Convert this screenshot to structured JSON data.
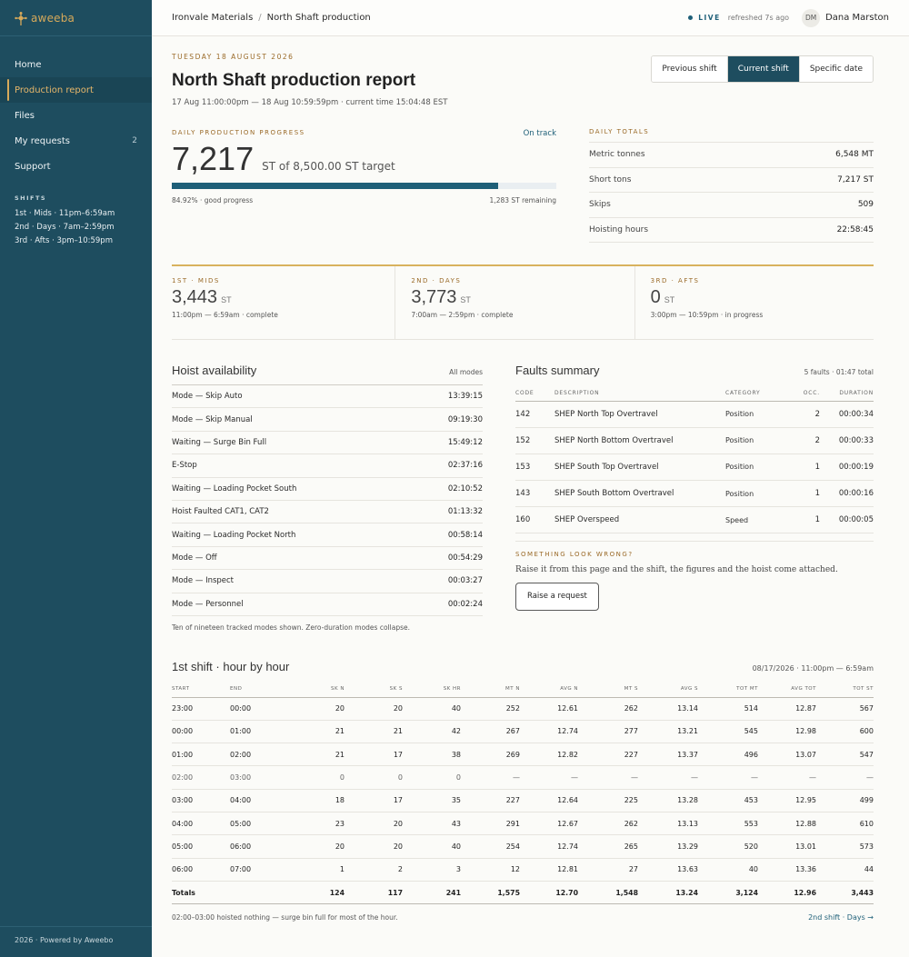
{
  "brand": "aweeba",
  "nav": [
    {
      "label": "Home"
    },
    {
      "label": "Production report",
      "active": true
    },
    {
      "label": "Files"
    },
    {
      "label": "My requests",
      "badge": "2"
    },
    {
      "label": "Support"
    }
  ],
  "shifts_heading": "SHIFTS",
  "shift_lines": [
    "1st · Mids · 11pm–6:59am",
    "2nd · Days · 7am–2:59pm",
    "3rd · Afts · 3pm–10:59pm"
  ],
  "footer": "2026 · Powered by Aweebo",
  "breadcrumb": {
    "parent": "Ironvale Materials",
    "sep": "/",
    "current": "North Shaft production"
  },
  "status": {
    "live": "LIVE",
    "refreshed": "refreshed 7s ago"
  },
  "user": {
    "initials": "DM",
    "name": "Dana Marston"
  },
  "report": {
    "date": "TUESDAY 18 AUGUST 2026",
    "title": "North Shaft production report",
    "subtitle": "17 Aug 11:00:00pm — 18 Aug 10:59:59pm · current time 15:04:48 EST"
  },
  "shift_tabs": [
    {
      "label": "Previous shift"
    },
    {
      "label": "Current shift",
      "active": true
    },
    {
      "label": "Specific date"
    }
  ],
  "progress": {
    "heading": "DAILY PRODUCTION PROGRESS",
    "status": "On track",
    "value": "7,217",
    "target_text": "ST of 8,500.00 ST target",
    "percent": 84.92,
    "percent_text": "84.92% · good progress",
    "remaining": "1,283 ST remaining"
  },
  "totals": {
    "heading": "DAILY TOTALS",
    "rows": [
      {
        "label": "Metric tonnes",
        "value": "6,548 MT"
      },
      {
        "label": "Short tons",
        "value": "7,217 ST"
      },
      {
        "label": "Skips",
        "value": "509"
      },
      {
        "label": "Hoisting hours",
        "value": "22:58:45"
      }
    ]
  },
  "shift_cards": [
    {
      "heading": "1ST · MIDS",
      "value": "3,443",
      "unit": "ST",
      "note": "11:00pm — 6:59am · complete"
    },
    {
      "heading": "2ND · DAYS",
      "value": "3,773",
      "unit": "ST",
      "note": "7:00am — 2:59pm · complete"
    },
    {
      "heading": "3RD · AFTS",
      "value": "0",
      "unit": "ST",
      "note": "3:00pm — 10:59pm · in progress"
    }
  ],
  "hoist": {
    "title": "Hoist availability",
    "meta": "All modes",
    "rows": [
      {
        "label": "Mode — Skip Auto",
        "value": "13:39:15"
      },
      {
        "label": "Mode — Skip Manual",
        "value": "09:19:30"
      },
      {
        "label": "Waiting — Surge Bin Full",
        "value": "15:49:12"
      },
      {
        "label": "E-Stop",
        "value": "02:37:16"
      },
      {
        "label": "Waiting — Loading Pocket South",
        "value": "02:10:52"
      },
      {
        "label": "Hoist Faulted CAT1, CAT2",
        "value": "01:13:32"
      },
      {
        "label": "Waiting — Loading Pocket North",
        "value": "00:58:14"
      },
      {
        "label": "Mode — Off",
        "value": "00:54:29"
      },
      {
        "label": "Mode — Inspect",
        "value": "00:03:27"
      },
      {
        "label": "Mode — Personnel",
        "value": "00:02:24"
      }
    ],
    "note": "Ten of nineteen tracked modes shown. Zero-duration modes collapse."
  },
  "faults": {
    "title": "Faults summary",
    "meta": "5 faults · 01:47 total",
    "columns": [
      "CODE",
      "DESCRIPTION",
      "CATEGORY",
      "OCC.",
      "DURATION"
    ],
    "rows": [
      {
        "code": "142",
        "desc": "SHEP North Top Overtravel",
        "cat": "Position",
        "occ": "2",
        "dur": "00:00:34"
      },
      {
        "code": "152",
        "desc": "SHEP North Bottom Overtravel",
        "cat": "Position",
        "occ": "2",
        "dur": "00:00:33"
      },
      {
        "code": "153",
        "desc": "SHEP South Top Overtravel",
        "cat": "Position",
        "occ": "1",
        "dur": "00:00:19"
      },
      {
        "code": "143",
        "desc": "SHEP South Bottom Overtravel",
        "cat": "Position",
        "occ": "1",
        "dur": "00:00:16"
      },
      {
        "code": "160",
        "desc": "SHEP Overspeed",
        "cat": "Speed",
        "occ": "1",
        "dur": "00:00:05"
      }
    ]
  },
  "wrong": {
    "heading": "SOMETHING LOOK WRONG?",
    "text": "Raise it from this page and the shift, the figures and the hoist come attached.",
    "button": "Raise a request"
  },
  "hourly": {
    "title": "1st shift · hour by hour",
    "range": "08/17/2026 · 11:00pm — 6:59am",
    "columns": [
      "START",
      "END",
      "SK N",
      "SK S",
      "SK HR",
      "MT N",
      "AVG N",
      "MT S",
      "AVG S",
      "TOT MT",
      "AVG TOT",
      "TOT ST"
    ],
    "rows": [
      [
        "23:00",
        "00:00",
        "20",
        "20",
        "40",
        "252",
        "12.61",
        "262",
        "13.14",
        "514",
        "12.87",
        "567"
      ],
      [
        "00:00",
        "01:00",
        "21",
        "21",
        "42",
        "267",
        "12.74",
        "277",
        "13.21",
        "545",
        "12.98",
        "600"
      ],
      [
        "01:00",
        "02:00",
        "21",
        "17",
        "38",
        "269",
        "12.82",
        "227",
        "13.37",
        "496",
        "13.07",
        "547"
      ],
      [
        "02:00",
        "03:00",
        "0",
        "0",
        "0",
        "—",
        "—",
        "—",
        "—",
        "—",
        "—",
        "—"
      ],
      [
        "03:00",
        "04:00",
        "18",
        "17",
        "35",
        "227",
        "12.64",
        "225",
        "13.28",
        "453",
        "12.95",
        "499"
      ],
      [
        "04:00",
        "05:00",
        "23",
        "20",
        "43",
        "291",
        "12.67",
        "262",
        "13.13",
        "553",
        "12.88",
        "610"
      ],
      [
        "05:00",
        "06:00",
        "20",
        "20",
        "40",
        "254",
        "12.74",
        "265",
        "13.29",
        "520",
        "13.01",
        "573"
      ],
      [
        "06:00",
        "07:00",
        "1",
        "2",
        "3",
        "12",
        "12.81",
        "27",
        "13.63",
        "40",
        "13.36",
        "44"
      ]
    ],
    "totals": [
      "Totals",
      "",
      "124",
      "117",
      "241",
      "1,575",
      "12.70",
      "1,548",
      "13.24",
      "3,124",
      "12.96",
      "3,443"
    ],
    "note": "02:00–03:00 hoisted nothing — surge bin full for most of the hour.",
    "next": "2nd shift · Days →"
  },
  "colors": {
    "sidebar": "#1e4d5f",
    "accent": "#d6a95a",
    "primary": "#1e5f78"
  }
}
